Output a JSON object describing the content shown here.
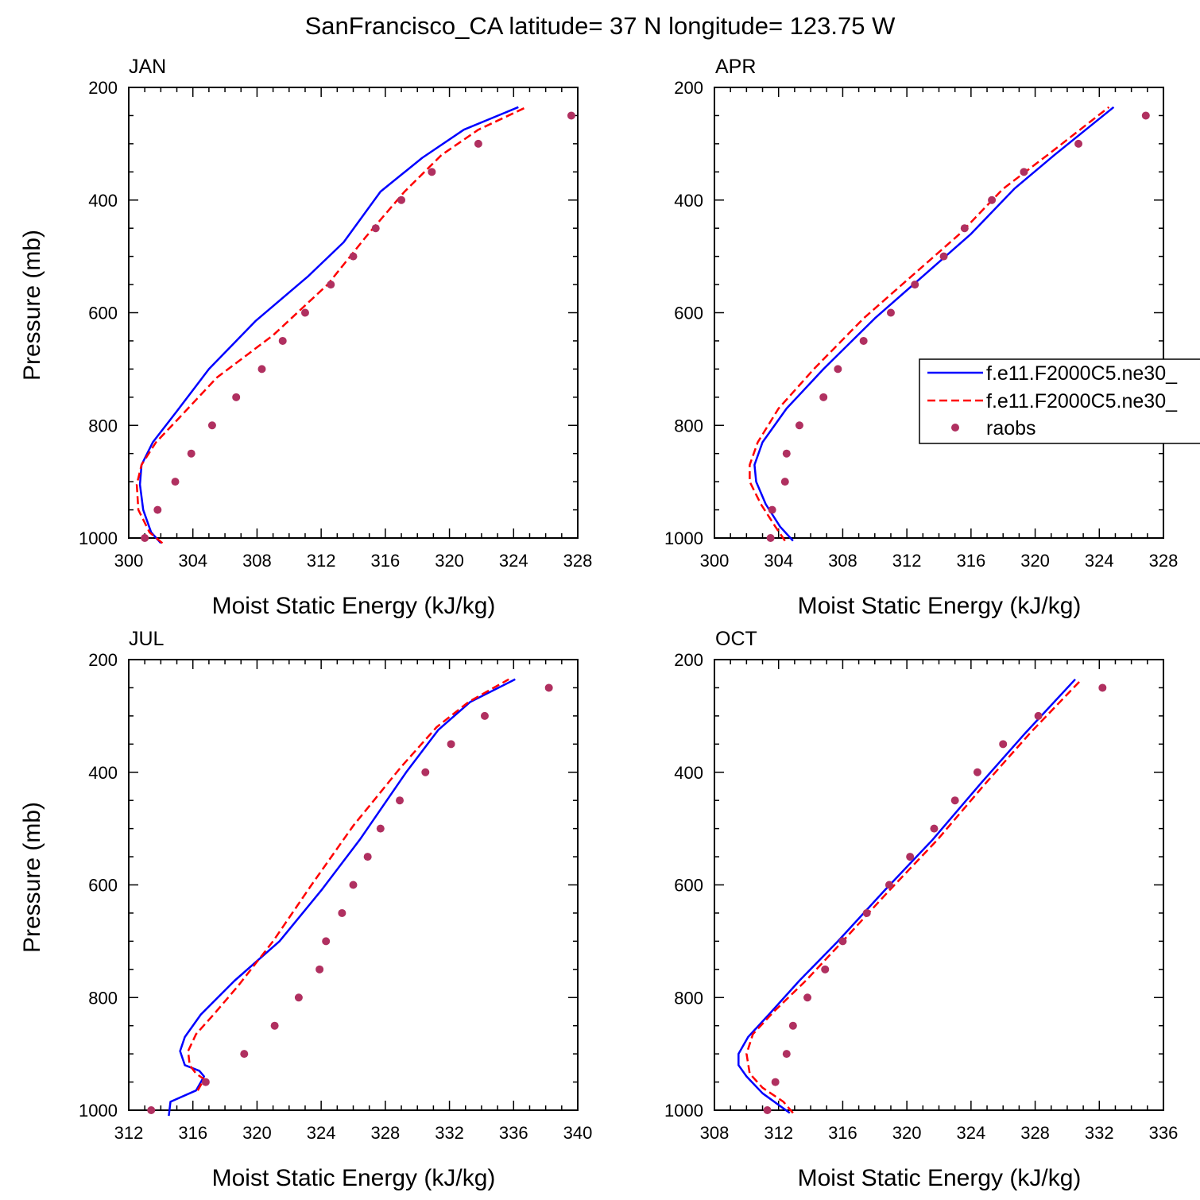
{
  "figure": {
    "title": "SanFrancisco_CA  latitude= 37 N longitude= 123.75 W"
  },
  "legend": {
    "entries": [
      {
        "label": "f.e11.F2000C5.ne30_",
        "style": "solid",
        "color": "#0000ff"
      },
      {
        "label": "f.e11.F2000C5.ne30_",
        "style": "dashed",
        "color": "#ff0000"
      },
      {
        "label": "raobs",
        "style": "marker",
        "color": "#b03060"
      }
    ]
  },
  "colors": {
    "model1": "#0000ff",
    "model2": "#ff0000",
    "obs": "#b03060"
  },
  "chart_data": [
    {
      "type": "line",
      "title": "JAN",
      "xlabel": "Moist Static Energy (kJ/kg)",
      "ylabel": "Pressure (mb)",
      "xlim": [
        300,
        328
      ],
      "ylim": [
        200,
        1000
      ],
      "y_inverted": true,
      "xticks": [
        300,
        304,
        308,
        312,
        316,
        320,
        324,
        328
      ],
      "yticks": [
        200,
        400,
        600,
        800,
        1000
      ],
      "series": [
        {
          "name": "f.e11.F2000C5.ne30_ (solid)",
          "style": "solid",
          "x": [
            302.0,
            301.4,
            300.9,
            300.7,
            300.8,
            301.5,
            303.0,
            305.0,
            307.9,
            311.2,
            313.4,
            315.7,
            318.3,
            320.9,
            324.3
          ],
          "y": [
            1009,
            990,
            950,
            905,
            870,
            830,
            775,
            700,
            615,
            535,
            475,
            385,
            325,
            275,
            235
          ]
        },
        {
          "name": "f.e11.F2000C5.ne30_ (dashed)",
          "style": "dashed",
          "x": [
            302.1,
            301.3,
            300.6,
            300.5,
            300.8,
            301.7,
            303.2,
            305.5,
            309.0,
            312.4,
            314.8,
            317.2,
            319.5,
            321.8,
            324.8
          ],
          "y": [
            1009,
            990,
            950,
            905,
            870,
            830,
            785,
            715,
            640,
            550,
            465,
            385,
            320,
            275,
            235
          ]
        },
        {
          "name": "raobs",
          "style": "marker",
          "x": [
            301.0,
            301.8,
            302.9,
            303.9,
            305.2,
            306.7,
            308.3,
            309.6,
            311.0,
            312.6,
            314.0,
            315.4,
            317.0,
            318.9,
            321.8,
            327.6
          ],
          "y": [
            1000,
            950,
            900,
            850,
            800,
            750,
            700,
            650,
            600,
            550,
            500,
            450,
            400,
            350,
            300,
            250
          ]
        }
      ]
    },
    {
      "type": "line",
      "title": "APR",
      "xlabel": "Moist Static Energy (kJ/kg)",
      "ylabel": "",
      "xlim": [
        300,
        328
      ],
      "ylim": [
        200,
        1000
      ],
      "y_inverted": true,
      "xticks": [
        300,
        304,
        308,
        312,
        316,
        320,
        324,
        328
      ],
      "yticks": [
        200,
        400,
        600,
        800,
        1000
      ],
      "series": [
        {
          "name": "f.e11.F2000C5.ne30_ (solid)",
          "style": "solid",
          "x": [
            304.9,
            304.1,
            303.2,
            302.6,
            302.5,
            303.0,
            304.5,
            306.8,
            310.0,
            313.2,
            316.0,
            318.7,
            321.2,
            324.9
          ],
          "y": [
            1005,
            980,
            940,
            900,
            870,
            830,
            770,
            700,
            610,
            530,
            460,
            380,
            320,
            235
          ]
        },
        {
          "name": "f.e11.F2000C5.ne30_ (dashed)",
          "style": "dashed",
          "x": [
            304.4,
            303.8,
            302.9,
            302.2,
            302.2,
            302.7,
            304.0,
            306.2,
            309.3,
            312.5,
            315.3,
            318.0,
            321.0,
            324.6
          ],
          "y": [
            1005,
            980,
            940,
            900,
            870,
            830,
            770,
            700,
            610,
            530,
            460,
            380,
            315,
            235
          ]
        },
        {
          "name": "raobs",
          "style": "marker",
          "x": [
            303.5,
            303.6,
            304.4,
            304.5,
            305.3,
            306.8,
            307.7,
            309.3,
            311.0,
            312.5,
            314.3,
            315.6,
            317.3,
            319.3,
            322.7,
            326.9
          ],
          "y": [
            1000,
            950,
            900,
            850,
            800,
            750,
            700,
            650,
            600,
            550,
            500,
            450,
            400,
            350,
            300,
            250
          ]
        }
      ]
    },
    {
      "type": "line",
      "title": "JUL",
      "xlabel": "Moist Static Energy (kJ/kg)",
      "ylabel": "Pressure (mb)",
      "xlim": [
        312,
        340
      ],
      "ylim": [
        200,
        1000
      ],
      "y_inverted": true,
      "xticks": [
        312,
        316,
        320,
        324,
        328,
        332,
        336,
        340
      ],
      "yticks": [
        200,
        400,
        600,
        800,
        1000
      ],
      "series": [
        {
          "name": "f.e11.F2000C5.ne30_ (solid)",
          "style": "solid",
          "x": [
            314.5,
            314.6,
            316.2,
            316.7,
            316.4,
            315.5,
            315.2,
            315.5,
            316.5,
            318.6,
            321.4,
            324.0,
            326.4,
            329.3,
            331.3,
            333.3,
            336.1
          ],
          "y": [
            1010,
            985,
            965,
            940,
            930,
            920,
            895,
            870,
            830,
            770,
            700,
            610,
            520,
            400,
            325,
            275,
            235
          ]
        },
        {
          "name": "f.e11.F2000C5.ne30_ (dashed)",
          "style": "dashed",
          "x": [
            316.3,
            316.7,
            316.2,
            315.8,
            315.7,
            316.2,
            317.3,
            318.8,
            321.0,
            323.4,
            326.0,
            329.0,
            331.2,
            333.2,
            335.7
          ],
          "y": [
            965,
            945,
            935,
            920,
            895,
            865,
            830,
            780,
            700,
            600,
            495,
            390,
            320,
            275,
            235
          ]
        },
        {
          "name": "raobs",
          "style": "marker",
          "x": [
            313.4,
            316.8,
            319.2,
            321.1,
            322.6,
            323.9,
            324.3,
            325.3,
            326.0,
            326.9,
            327.7,
            328.9,
            330.5,
            332.1,
            334.2,
            338.2
          ],
          "y": [
            1000,
            950,
            900,
            850,
            800,
            750,
            700,
            650,
            600,
            550,
            500,
            450,
            400,
            350,
            300,
            250
          ]
        }
      ]
    },
    {
      "type": "line",
      "title": "OCT",
      "xlabel": "Moist Static Energy (kJ/kg)",
      "ylabel": "",
      "xlim": [
        308,
        336
      ],
      "ylim": [
        200,
        1000
      ],
      "y_inverted": true,
      "xticks": [
        308,
        312,
        316,
        320,
        324,
        328,
        332,
        336
      ],
      "yticks": [
        200,
        400,
        600,
        800,
        1000
      ],
      "series": [
        {
          "name": "f.e11.F2000C5.ne30_ (solid)",
          "style": "solid",
          "x": [
            312.7,
            311.0,
            310.0,
            309.5,
            309.5,
            310.1,
            311.4,
            313.3,
            315.7,
            318.6,
            321.6,
            324.6,
            327.4,
            330.5
          ],
          "y": [
            1005,
            970,
            940,
            920,
            900,
            870,
            830,
            770,
            700,
            610,
            520,
            420,
            330,
            235
          ]
        },
        {
          "name": "f.e11.F2000C5.ne30_ (dashed)",
          "style": "dashed",
          "x": [
            312.9,
            312.3,
            311.0,
            310.2,
            310.0,
            310.4,
            311.7,
            313.7,
            316.0,
            318.9,
            321.9,
            324.9,
            327.7,
            330.9
          ],
          "y": [
            1005,
            985,
            960,
            935,
            900,
            865,
            825,
            770,
            700,
            610,
            520,
            420,
            330,
            235
          ]
        },
        {
          "name": "raobs",
          "style": "marker",
          "x": [
            311.3,
            311.8,
            312.5,
            312.9,
            313.8,
            314.9,
            316.0,
            317.5,
            318.9,
            320.2,
            321.7,
            323.0,
            324.4,
            326.0,
            328.2,
            332.2
          ],
          "y": [
            1000,
            950,
            900,
            850,
            800,
            750,
            700,
            650,
            600,
            550,
            500,
            450,
            400,
            350,
            300,
            250
          ]
        }
      ]
    }
  ]
}
